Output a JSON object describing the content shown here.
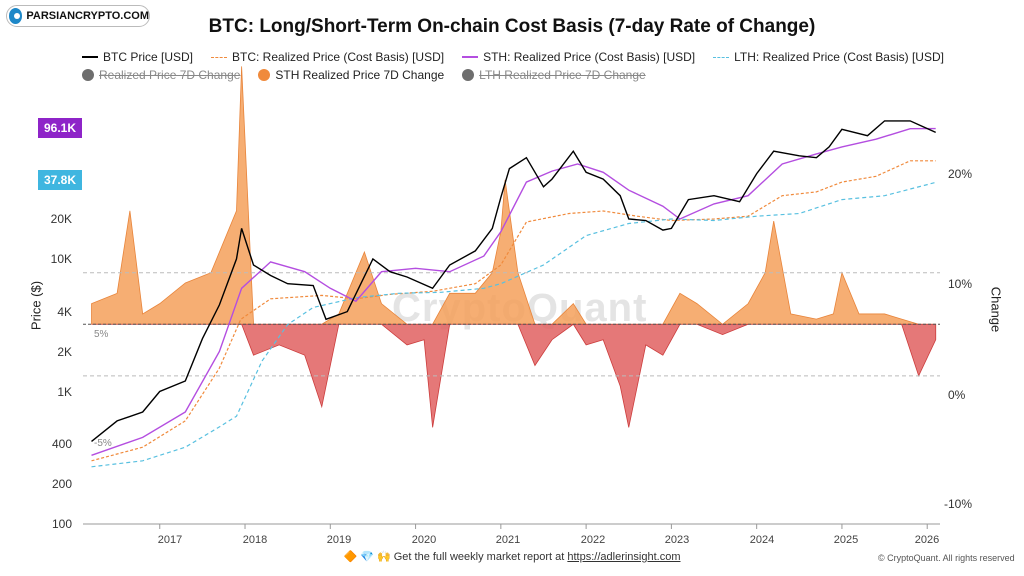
{
  "watermark_logo": "PARSIANCRYPTO.COM",
  "chart_data": {
    "type": "line",
    "title": "BTC: Long/Short-Term On-chain Cost Basis (7-day Rate of Change)",
    "ylabel": "Price ($)",
    "y2label": "Change",
    "y_scale": "log",
    "ylim": [
      100,
      250000
    ],
    "y2lim": [
      -0.12,
      0.2
    ],
    "y_ticks": [
      "20K",
      "10K",
      "4K",
      "2K",
      "1K",
      "400",
      "200",
      "100"
    ],
    "y2_ticks": [
      "20%",
      "10%",
      "0%",
      "-10%"
    ],
    "x_ticks": [
      "2017",
      "2018",
      "2019",
      "2020",
      "2021",
      "2022",
      "2023",
      "2024",
      "2025",
      "2026"
    ],
    "badges": [
      {
        "label": "96.1K",
        "color": "#8e24c8"
      },
      {
        "label": "37.8K",
        "color": "#3fb6e0"
      }
    ],
    "reference_lines": [
      {
        "label": "5%"
      },
      {
        "label": "-5%"
      }
    ],
    "legend": [
      {
        "label": "BTC Price [USD]",
        "color": "#000000",
        "style": "line",
        "visible": true
      },
      {
        "label": "BTC: Realized Price (Cost Basis) [USD]",
        "color": "#f08a3c",
        "style": "dash",
        "visible": true
      },
      {
        "label": "STH: Realized Price (Cost Basis) [USD]",
        "color": "#b44ee0",
        "style": "line",
        "visible": true
      },
      {
        "label": "LTH: Realized Price (Cost Basis) [USD]",
        "color": "#58c0e0",
        "style": "dash",
        "visible": true
      },
      {
        "label": "Realized Price 7D Change",
        "color": "#6e6e6e",
        "style": "dot",
        "visible": false
      },
      {
        "label": "STH Realized Price 7D Change",
        "color": "#f08a3c",
        "style": "dot",
        "visible": true
      },
      {
        "label": "LTH Realized Price 7D Change",
        "color": "#6e6e6e",
        "style": "dot",
        "visible": false
      }
    ],
    "series": [
      {
        "name": "BTC Price [USD]",
        "x": [
          2016.2,
          2016.5,
          2016.8,
          2017.0,
          2017.3,
          2017.5,
          2017.7,
          2017.9,
          2017.96,
          2018.1,
          2018.3,
          2018.5,
          2018.8,
          2018.95,
          2019.2,
          2019.5,
          2019.7,
          2019.9,
          2020.2,
          2020.4,
          2020.7,
          2020.9,
          2021.0,
          2021.1,
          2021.3,
          2021.5,
          2021.6,
          2021.85,
          2022.0,
          2022.2,
          2022.4,
          2022.5,
          2022.7,
          2022.9,
          2023.0,
          2023.2,
          2023.5,
          2023.8,
          2024.0,
          2024.2,
          2024.5,
          2024.7,
          2024.85,
          2025.0,
          2025.3,
          2025.5,
          2025.8,
          2026.1
        ],
        "y": [
          420,
          600,
          700,
          1000,
          1200,
          2500,
          4500,
          10000,
          17000,
          9000,
          7500,
          6500,
          6300,
          3500,
          4000,
          10000,
          8000,
          7300,
          6000,
          9000,
          11500,
          17000,
          29000,
          48000,
          58000,
          35000,
          40000,
          65000,
          45000,
          40000,
          30000,
          20000,
          19500,
          16500,
          17000,
          28000,
          30000,
          27000,
          44000,
          65000,
          60000,
          58000,
          70000,
          95000,
          85000,
          110000,
          110000,
          90000
        ]
      },
      {
        "name": "BTC: Realized Price (Cost Basis) [USD]",
        "x": [
          2016.2,
          2016.8,
          2017.3,
          2017.7,
          2017.95,
          2018.3,
          2018.9,
          2019.3,
          2019.7,
          2020.2,
          2020.7,
          2021.0,
          2021.3,
          2021.8,
          2022.2,
          2022.6,
          2023.0,
          2023.5,
          2023.9,
          2024.3,
          2024.7,
          2025.0,
          2025.4,
          2025.8,
          2026.1
        ],
        "y": [
          300,
          380,
          600,
          1500,
          3500,
          5000,
          5300,
          5000,
          5400,
          5700,
          6500,
          9000,
          19000,
          22000,
          23000,
          21000,
          19500,
          20000,
          21000,
          30000,
          32000,
          38000,
          42000,
          55000,
          55000
        ]
      },
      {
        "name": "STH: Realized Price (Cost Basis) [USD]",
        "x": [
          2016.2,
          2016.8,
          2017.3,
          2017.7,
          2017.96,
          2018.3,
          2018.7,
          2019.0,
          2019.3,
          2019.6,
          2020.0,
          2020.4,
          2020.8,
          2021.0,
          2021.3,
          2021.6,
          2021.9,
          2022.2,
          2022.5,
          2022.9,
          2023.1,
          2023.5,
          2023.9,
          2024.3,
          2024.7,
          2025.0,
          2025.4,
          2025.8,
          2026.1
        ],
        "y": [
          330,
          450,
          700,
          2000,
          6000,
          9500,
          8000,
          6000,
          4800,
          8000,
          8500,
          8000,
          10500,
          16000,
          38000,
          46000,
          52000,
          45000,
          33000,
          25000,
          20000,
          26000,
          30000,
          52000,
          62000,
          70000,
          80000,
          96000,
          96100
        ]
      },
      {
        "name": "LTH: Realized Price (Cost Basis) [USD]",
        "x": [
          2016.2,
          2016.8,
          2017.3,
          2017.7,
          2017.9,
          2018.2,
          2018.5,
          2018.8,
          2019.3,
          2019.8,
          2020.3,
          2020.8,
          2021.0,
          2021.5,
          2022.0,
          2022.5,
          2023.0,
          2023.5,
          2024.0,
          2024.5,
          2025.0,
          2025.5,
          2026.1
        ],
        "y": [
          270,
          300,
          380,
          540,
          650,
          1700,
          3200,
          4300,
          5100,
          5500,
          5600,
          6000,
          6500,
          9000,
          15000,
          18500,
          20000,
          19500,
          21000,
          22000,
          28000,
          30000,
          37800
        ]
      },
      {
        "name": "STH Realized Price 7D Change",
        "x": [
          2016.2,
          2016.5,
          2016.65,
          2016.8,
          2017.0,
          2017.3,
          2017.6,
          2017.9,
          2017.96,
          2018.1,
          2018.4,
          2018.7,
          2018.9,
          2019.1,
          2019.4,
          2019.6,
          2019.9,
          2020.1,
          2020.2,
          2020.4,
          2020.7,
          2020.9,
          2021.0,
          2021.05,
          2021.2,
          2021.4,
          2021.6,
          2021.85,
          2022.0,
          2022.2,
          2022.4,
          2022.5,
          2022.7,
          2022.9,
          2023.1,
          2023.3,
          2023.6,
          2023.9,
          2024.1,
          2024.2,
          2024.4,
          2024.7,
          2024.9,
          2025.0,
          2025.2,
          2025.5,
          2025.7,
          2025.9,
          2026.1
        ],
        "y": [
          0.02,
          0.03,
          0.11,
          0.01,
          0.02,
          0.04,
          0.05,
          0.11,
          0.25,
          -0.03,
          -0.02,
          -0.03,
          -0.08,
          0.01,
          0.07,
          0.02,
          -0.02,
          -0.015,
          -0.1,
          0.03,
          0.03,
          0.05,
          0.09,
          0.14,
          0.05,
          -0.04,
          -0.015,
          0.02,
          -0.02,
          -0.015,
          -0.06,
          -0.1,
          -0.02,
          -0.03,
          0.03,
          0.02,
          -0.01,
          0.02,
          0.05,
          0.1,
          0.01,
          0.005,
          0.01,
          0.05,
          0.01,
          0.01,
          0.005,
          -0.05,
          -0.015
        ]
      }
    ]
  },
  "footer": {
    "text": "🔶 💎 🙌  Get the full weekly market report at ",
    "link": "https://adlerinsight.com",
    "copyright": "© CryptoQuant. All rights reserved"
  }
}
